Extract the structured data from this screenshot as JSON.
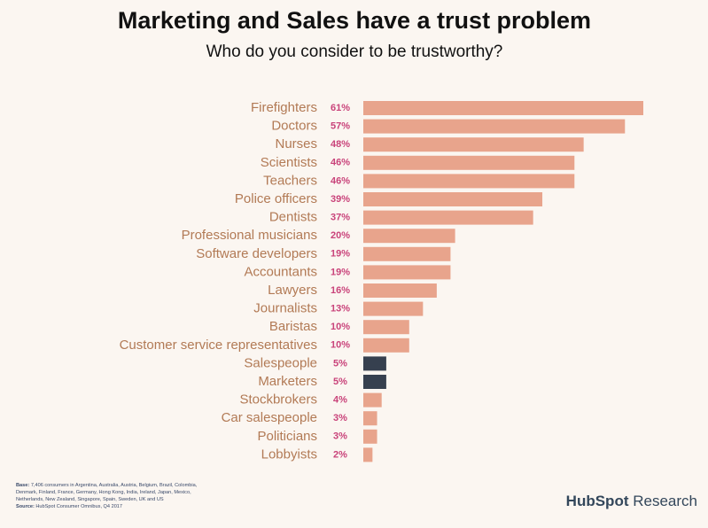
{
  "chart_data": {
    "type": "bar",
    "orientation": "horizontal",
    "title": "Marketing and Sales have a trust problem",
    "subtitle": "Who do you consider to be trustworthy?",
    "categories": [
      "Firefighters",
      "Doctors",
      "Nurses",
      "Scientists",
      "Teachers",
      "Police officers",
      "Dentists",
      "Professional musicians",
      "Software developers",
      "Accountants",
      "Lawyers",
      "Journalists",
      "Baristas",
      "Customer service representatives",
      "Salespeople",
      "Marketers",
      "Stockbrokers",
      "Car salespeople",
      "Politicians",
      "Lobbyists"
    ],
    "values": [
      61,
      57,
      48,
      46,
      46,
      39,
      37,
      20,
      19,
      19,
      16,
      13,
      10,
      10,
      5,
      5,
      4,
      3,
      3,
      2
    ],
    "value_labels": [
      "61%",
      "57%",
      "48%",
      "46%",
      "46%",
      "39%",
      "37%",
      "20%",
      "19%",
      "19%",
      "16%",
      "13%",
      "10%",
      "10%",
      "5%",
      "5%",
      "4%",
      "3%",
      "3%",
      "2%"
    ],
    "colors": [
      "#e8a48c",
      "#e8a48c",
      "#e8a48c",
      "#e8a48c",
      "#e8a48c",
      "#e8a48c",
      "#e8a48c",
      "#e8a48c",
      "#e8a48c",
      "#e8a48c",
      "#e8a48c",
      "#e8a48c",
      "#e8a48c",
      "#e8a48c",
      "#36404f",
      "#36404f",
      "#e8a48c",
      "#e8a48c",
      "#e8a48c",
      "#e8a48c"
    ]
  },
  "footnote": {
    "base_label": "Base:",
    "base_text": "7,406 consumers in Argentina, Australia, Austria, Belgium, Brazil, Colombia, Denmark, Finland, France, Germany, Hong Kong, India, Ireland, Japan, Mexico, Netherlands, New Zealand, Singapore, Spain, Sweden, UK and US",
    "source_label": "Source:",
    "source_text": "HubSpot Consumer Omnibus, Q4 2017"
  },
  "logo": {
    "brand": "HubSpot",
    "suffix": "Research"
  }
}
